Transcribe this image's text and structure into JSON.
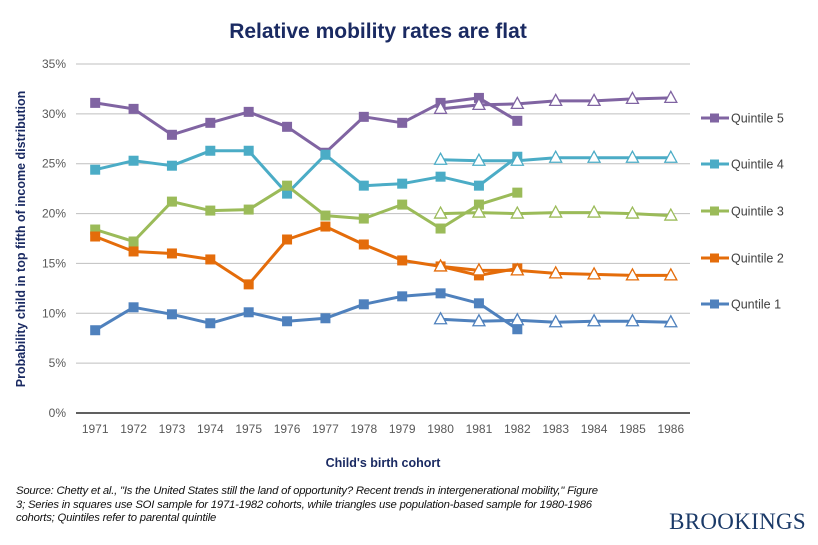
{
  "chart_data": {
    "type": "line",
    "title": "Relative mobility rates are flat",
    "xlabel": "Child's birth cohort",
    "ylabel": "Probability child in top fifth of income distribution",
    "ylim": [
      0,
      35
    ],
    "yticks": [
      "0%",
      "5%",
      "10%",
      "15%",
      "20%",
      "25%",
      "30%",
      "35%"
    ],
    "ytick_values": [
      0,
      5,
      10,
      15,
      20,
      25,
      30,
      35
    ],
    "grid": "horizontal",
    "legend_position": "right",
    "categories": [
      "1971",
      "1972",
      "1973",
      "1974",
      "1975",
      "1976",
      "1977",
      "1978",
      "1979",
      "1980",
      "1981",
      "1982",
      "1983",
      "1984",
      "1985",
      "1986"
    ],
    "series": [
      {
        "name": "Quintile 5",
        "color": "#8064A2",
        "squares": [
          31.1,
          30.5,
          27.9,
          29.1,
          30.2,
          28.7,
          26.1,
          29.7,
          29.1,
          31.1,
          31.6,
          29.3,
          null,
          null,
          null,
          null
        ],
        "triangles": [
          null,
          null,
          null,
          null,
          null,
          null,
          null,
          null,
          null,
          30.5,
          30.9,
          31.0,
          31.3,
          31.3,
          31.5,
          31.6
        ]
      },
      {
        "name": "Quintile 4",
        "color": "#4BACC6",
        "squares": [
          24.4,
          25.3,
          24.8,
          26.3,
          26.3,
          22.0,
          25.9,
          22.8,
          23.0,
          23.7,
          22.8,
          25.7,
          null,
          null,
          null,
          null
        ],
        "triangles": [
          null,
          null,
          null,
          null,
          null,
          null,
          null,
          null,
          null,
          25.4,
          25.3,
          25.3,
          25.6,
          25.6,
          25.6,
          25.6
        ]
      },
      {
        "name": "Quintile 3",
        "color": "#9BBB59",
        "squares": [
          18.4,
          17.2,
          21.2,
          20.3,
          20.4,
          22.8,
          19.8,
          19.5,
          20.9,
          18.5,
          20.9,
          22.1,
          null,
          null,
          null,
          null
        ],
        "triangles": [
          null,
          null,
          null,
          null,
          null,
          null,
          null,
          null,
          null,
          20.0,
          20.1,
          20.0,
          20.1,
          20.1,
          20.0,
          19.8
        ]
      },
      {
        "name": "Quintile 2",
        "color": "#E46C0A",
        "squares": [
          17.7,
          16.2,
          16.0,
          15.4,
          12.9,
          17.4,
          18.7,
          16.9,
          15.3,
          14.7,
          13.8,
          14.5,
          null,
          null,
          null,
          null
        ],
        "triangles": [
          null,
          null,
          null,
          null,
          null,
          null,
          null,
          null,
          null,
          14.7,
          14.3,
          14.3,
          14.0,
          13.9,
          13.8,
          13.8
        ]
      },
      {
        "name": "Quntile 1",
        "color": "#4F81BD",
        "squares": [
          8.3,
          10.6,
          9.9,
          9.0,
          10.1,
          9.2,
          9.5,
          10.9,
          11.7,
          12.0,
          11.0,
          8.4,
          null,
          null,
          null,
          null
        ],
        "triangles": [
          null,
          null,
          null,
          null,
          null,
          null,
          null,
          null,
          null,
          9.4,
          9.2,
          9.3,
          9.1,
          9.2,
          9.2,
          9.1
        ]
      }
    ]
  },
  "footer": {
    "source": "Source: Chetty et al., \"Is the United States still the land of opportunity? Recent trends in intergenerational mobility,\" Figure 3; Series in squares use SOI sample for 1971-1982 cohorts, while triangles use population-based sample for 1980-1986 cohorts; Quintiles refer to parental quintile",
    "brand": "BROOKINGS"
  }
}
